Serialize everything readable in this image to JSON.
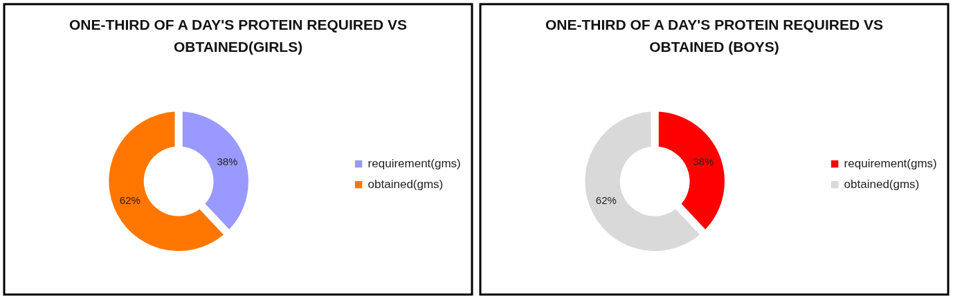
{
  "chart_data": [
    {
      "type": "donut",
      "title": "ONE-THIRD OF A DAY'S PROTEIN REQUIRED VS OBTAINED(GIRLS)",
      "categories": [
        "requirement(gms)",
        "obtained(gms)"
      ],
      "values": [
        38,
        62
      ],
      "colors": [
        "#9999ff",
        "#ff7700"
      ],
      "value_labels": [
        "38%",
        "62%"
      ],
      "legend": "right"
    },
    {
      "type": "donut",
      "title": "ONE-THIRD OF A DAY'S PROTEIN REQUIRED VS OBTAINED (BOYS)",
      "categories": [
        "requirement(gms)",
        "obtained(gms)"
      ],
      "values": [
        38,
        62
      ],
      "colors": [
        "#ff0000",
        "#d9d9d9"
      ],
      "value_labels": [
        "38%",
        "62%"
      ],
      "legend": "right"
    }
  ]
}
